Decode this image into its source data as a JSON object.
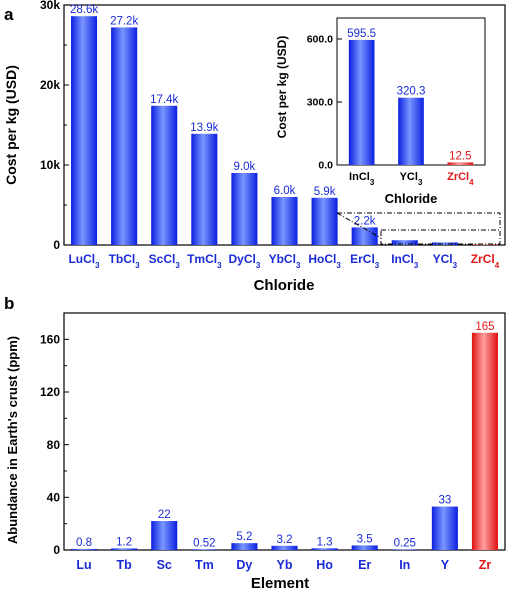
{
  "colors": {
    "bar_blue_light": "#6f8cff",
    "bar_blue_dark": "#0a1fe0",
    "bar_red_light": "#ff9a9a",
    "bar_red_dark": "#e01010",
    "label_blue": "#1a2bd6",
    "label_red": "#e01818",
    "axis": "#000000"
  },
  "chart_data": [
    {
      "panel_label": "a",
      "type": "bar",
      "xlabel": "Chloride",
      "ylabel": "Cost per kg (USD)",
      "ylim": [
        0,
        30000
      ],
      "yticks": [
        {
          "value": 0,
          "label": "0"
        },
        {
          "value": 10000,
          "label": "10k"
        },
        {
          "value": 20000,
          "label": "20k"
        },
        {
          "value": 30000,
          "label": "30k"
        }
      ],
      "categories": [
        {
          "el": "Lu",
          "sub": "3",
          "red": false
        },
        {
          "el": "Tb",
          "sub": "3",
          "red": false
        },
        {
          "el": "Sc",
          "sub": "3",
          "red": false
        },
        {
          "el": "Tm",
          "sub": "3",
          "red": false
        },
        {
          "el": "Dy",
          "sub": "3",
          "red": false
        },
        {
          "el": "Yb",
          "sub": "3",
          "red": false
        },
        {
          "el": "Ho",
          "sub": "3",
          "red": false
        },
        {
          "el": "Er",
          "sub": "3",
          "red": false
        },
        {
          "el": "In",
          "sub": "3",
          "red": false
        },
        {
          "el": "Y",
          "sub": "3",
          "red": false
        },
        {
          "el": "Zr",
          "sub": "4",
          "red": true
        }
      ],
      "values": [
        28600,
        27200,
        17400,
        13900,
        9000,
        6000,
        5900,
        2200,
        595.5,
        320.3,
        12.5
      ],
      "data_labels": [
        "28.6k",
        "27.2k",
        "17.4k",
        "13.9k",
        "9.0k",
        "6.0k",
        "5.9k",
        "2.2k",
        "",
        "",
        ""
      ],
      "grid": false,
      "inset": {
        "type": "bar",
        "xlabel": "Chloride",
        "ylabel": "Cost per kg (USD)",
        "ylim": [
          0,
          700
        ],
        "yticks": [
          {
            "value": 0,
            "label": "0.0"
          },
          {
            "value": 300,
            "label": "300.0"
          },
          {
            "value": 600,
            "label": "600.0"
          }
        ],
        "categories": [
          {
            "el": "In",
            "sub": "3",
            "red": false
          },
          {
            "el": "Y",
            "sub": "3",
            "red": false
          },
          {
            "el": "Zr",
            "sub": "4",
            "red": true
          }
        ],
        "values": [
          595.5,
          320.3,
          12.5
        ],
        "data_labels": [
          "595.5",
          "320.3",
          "12.5"
        ]
      }
    },
    {
      "panel_label": "b",
      "type": "bar",
      "xlabel": "Element",
      "ylabel": "Abundance in Earth's crust (ppm)",
      "ylim": [
        0,
        180
      ],
      "yticks": [
        {
          "value": 0,
          "label": "0"
        },
        {
          "value": 40,
          "label": "40"
        },
        {
          "value": 80,
          "label": "80"
        },
        {
          "value": 120,
          "label": "120"
        },
        {
          "value": 160,
          "label": "160"
        }
      ],
      "categories": [
        {
          "el": "Lu",
          "red": false
        },
        {
          "el": "Tb",
          "red": false
        },
        {
          "el": "Sc",
          "red": false
        },
        {
          "el": "Tm",
          "red": false
        },
        {
          "el": "Dy",
          "red": false
        },
        {
          "el": "Yb",
          "red": false
        },
        {
          "el": "Ho",
          "red": false
        },
        {
          "el": "Er",
          "red": false
        },
        {
          "el": "In",
          "red": false
        },
        {
          "el": "Y",
          "red": false
        },
        {
          "el": "Zr",
          "red": true
        }
      ],
      "values": [
        0.8,
        1.2,
        22,
        0.52,
        5.2,
        3.2,
        1.3,
        3.5,
        0.25,
        33,
        165
      ],
      "data_labels": [
        "0.8",
        "1.2",
        "22",
        "0.52",
        "5.2",
        "3.2",
        "1.3",
        "3.5",
        "0.25",
        "33",
        "165"
      ],
      "grid": false
    }
  ]
}
